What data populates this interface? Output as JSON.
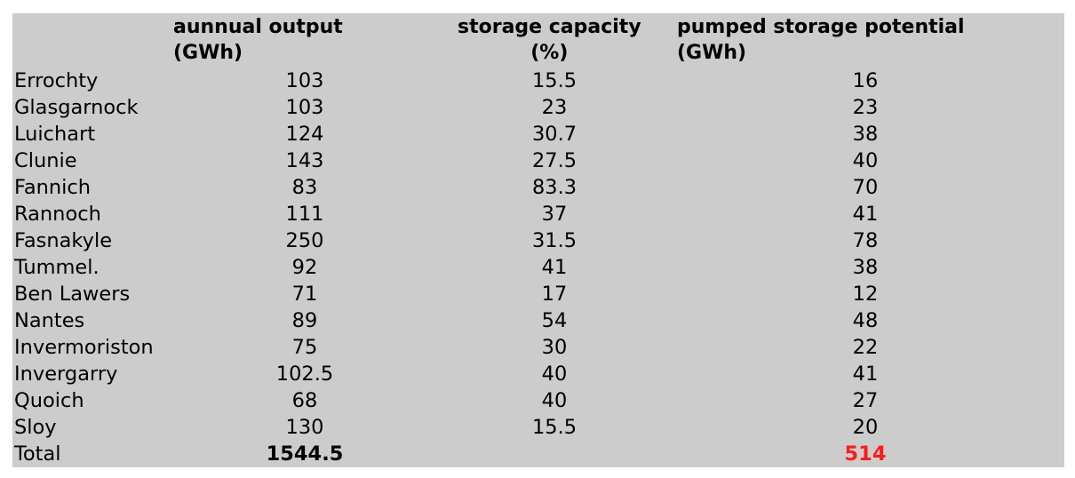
{
  "headers": {
    "output_line1": "aunnual output",
    "output_line2": "(GWh)",
    "storage_line1": "storage capacity",
    "storage_line2": "(%)",
    "pumped_line1": "pumped storage potential",
    "pumped_line2": "(GWh)"
  },
  "rows": [
    {
      "name": "Errochty",
      "output": "103",
      "storage": "15.5",
      "pumped": "16"
    },
    {
      "name": "Glasgarnock",
      "output": "103",
      "storage": "23",
      "pumped": "23"
    },
    {
      "name": "Luichart",
      "output": "124",
      "storage": "30.7",
      "pumped": "38"
    },
    {
      "name": "Clunie",
      "output": "143",
      "storage": "27.5",
      "pumped": "40"
    },
    {
      "name": "Fannich",
      "output": "83",
      "storage": "83.3",
      "pumped": "70"
    },
    {
      "name": "Rannoch",
      "output": "111",
      "storage": "37",
      "pumped": "41"
    },
    {
      "name": "Fasnakyle",
      "output": "250",
      "storage": "31.5",
      "pumped": "78"
    },
    {
      "name": "Tummel.",
      "output": "92",
      "storage": "41",
      "pumped": "38"
    },
    {
      "name": "Ben Lawers",
      "output": "71",
      "storage": "17",
      "pumped": "12"
    },
    {
      "name": "Nantes",
      "output": "89",
      "storage": "54",
      "pumped": "48"
    },
    {
      "name": "Invermoriston",
      "output": "75",
      "storage": "30",
      "pumped": "22"
    },
    {
      "name": "Invergarry",
      "output": "102.5",
      "storage": "40",
      "pumped": "41"
    },
    {
      "name": "Quoich",
      "output": "68",
      "storage": "40",
      "pumped": "27"
    },
    {
      "name": "Sloy",
      "output": "130",
      "storage": "15.5",
      "pumped": "20"
    }
  ],
  "total": {
    "label": "Total",
    "output": "1544.5",
    "pumped": "514"
  },
  "colors": {
    "background": "#cccccc",
    "total_pumped": "#ff1a1a"
  }
}
